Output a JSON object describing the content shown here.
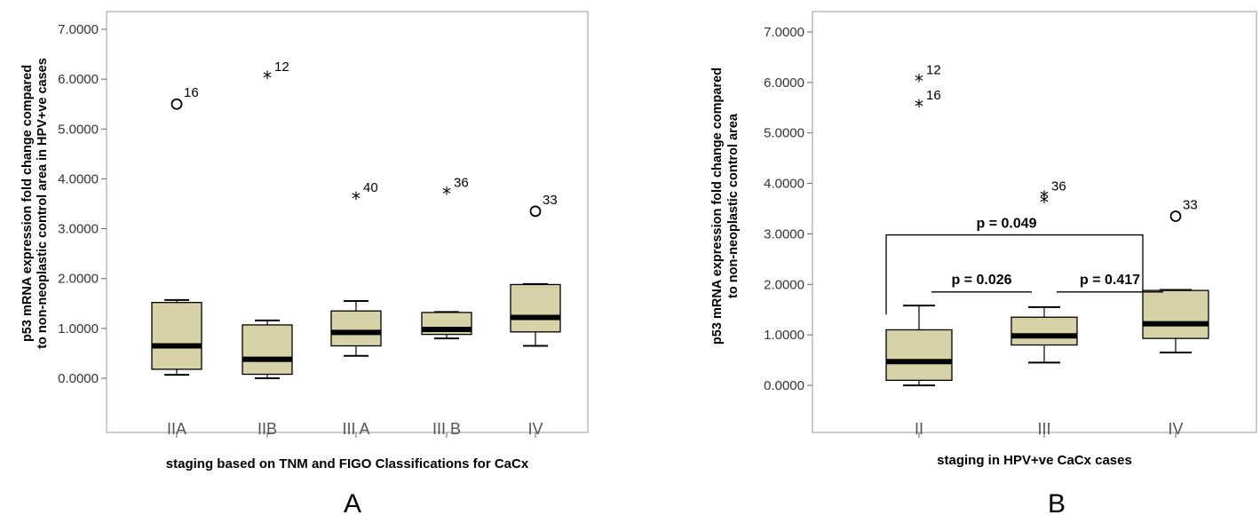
{
  "chart_data": [
    {
      "type": "box",
      "panel_label": "A",
      "ylabel_lines": [
        "p53 mRNA expression fold change compared",
        "to non-neoplastic control area in HPV+ve cases"
      ],
      "xlabel": "staging based on TNM and FIGO Classifications for CaCx",
      "ylim": [
        0,
        7
      ],
      "yticks": [
        "0.0000",
        "1.0000",
        "2.0000",
        "3.0000",
        "4.0000",
        "5.0000",
        "6.0000",
        "7.0000"
      ],
      "box_color": "#d8d2a9",
      "categories": [
        "IIA",
        "IIB",
        "III A",
        "III B",
        "IV"
      ],
      "boxes": [
        {
          "whisker_low": 0.07,
          "q1": 0.18,
          "median": 0.65,
          "q3": 1.52,
          "whisker_high": 1.57
        },
        {
          "whisker_low": 0.0,
          "q1": 0.08,
          "median": 0.38,
          "q3": 1.07,
          "whisker_high": 1.16
        },
        {
          "whisker_low": 0.45,
          "q1": 0.65,
          "median": 0.92,
          "q3": 1.35,
          "whisker_high": 1.55
        },
        {
          "whisker_low": 0.8,
          "q1": 0.88,
          "median": 0.98,
          "q3": 1.32,
          "whisker_high": 1.33
        },
        {
          "whisker_low": 0.65,
          "q1": 0.93,
          "median": 1.22,
          "q3": 1.88,
          "whisker_high": 1.89
        }
      ],
      "outliers": [
        {
          "category": "IIA",
          "value": 5.5,
          "marker": "circle",
          "label": "16"
        },
        {
          "category": "IIB",
          "value": 6.02,
          "marker": "star",
          "label": "12"
        },
        {
          "category": "III A",
          "value": 3.6,
          "marker": "star",
          "label": "40"
        },
        {
          "category": "III B",
          "value": 3.7,
          "marker": "star",
          "label": "36"
        },
        {
          "category": "IV",
          "value": 3.35,
          "marker": "circle",
          "label": "33"
        }
      ]
    },
    {
      "type": "box",
      "panel_label": "B",
      "ylabel_lines": [
        "p53 mRNA expression fold change compared",
        "to non-neoplastic control area"
      ],
      "xlabel": "staging in HPV+ve CaCx cases",
      "ylim": [
        0,
        7
      ],
      "yticks": [
        "0.0000",
        "1.0000",
        "2.0000",
        "3.0000",
        "4.0000",
        "5.0000",
        "6.0000",
        "7.0000"
      ],
      "box_color": "#d8d2a9",
      "categories": [
        "II",
        "III",
        "IV"
      ],
      "boxes": [
        {
          "whisker_low": 0.0,
          "q1": 0.1,
          "median": 0.47,
          "q3": 1.1,
          "whisker_high": 1.58
        },
        {
          "whisker_low": 0.45,
          "q1": 0.8,
          "median": 0.98,
          "q3": 1.35,
          "whisker_high": 1.55
        },
        {
          "whisker_low": 0.65,
          "q1": 0.93,
          "median": 1.22,
          "q3": 1.88,
          "whisker_high": 1.89
        }
      ],
      "outliers": [
        {
          "category": "II",
          "value": 6.02,
          "marker": "star",
          "label": "12"
        },
        {
          "category": "II",
          "value": 5.52,
          "marker": "star",
          "label": "16"
        },
        {
          "category": "III",
          "value": 3.72,
          "marker": "star",
          "label": "36"
        },
        {
          "category": "III",
          "value": 3.62,
          "marker": "star",
          "label": ""
        },
        {
          "category": "IV",
          "value": 3.35,
          "marker": "circle",
          "label": "33"
        }
      ],
      "annotations": [
        {
          "text": "p = 0.049",
          "from": "II",
          "to": "IV",
          "value": 2.98
        },
        {
          "text": "p = 0.026",
          "from": "II",
          "to": "III",
          "value": 1.85
        },
        {
          "text": "p = 0.417",
          "from": "III",
          "to": "IV",
          "value": 1.85
        }
      ]
    }
  ]
}
